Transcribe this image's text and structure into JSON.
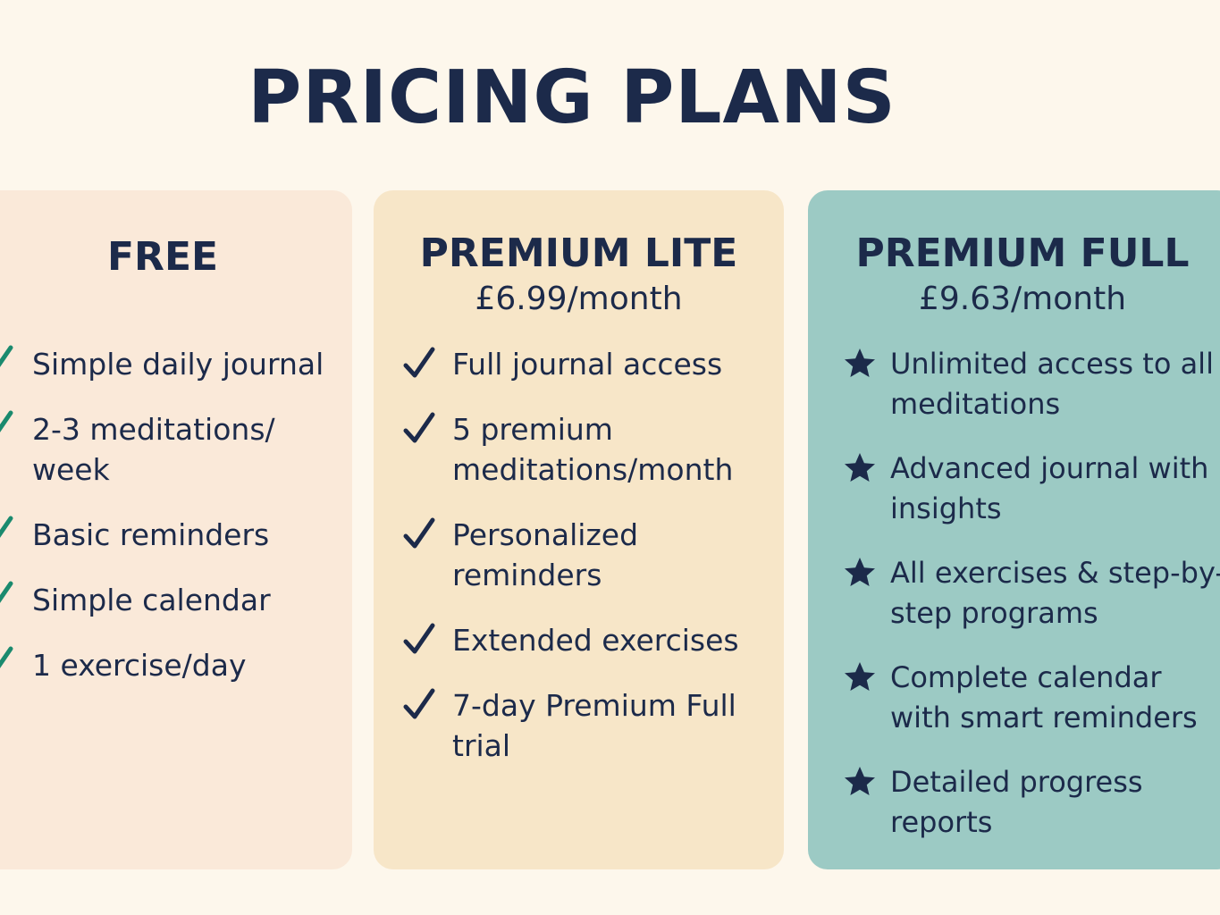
{
  "page": {
    "title": "PRICING PLANS"
  },
  "colors": {
    "background": "#fdf7ec",
    "text": "#1c2a4a",
    "free_card": "#fae9d9",
    "lite_card": "#f7e6c8",
    "full_card": "#9ccac4",
    "free_check": "#1a8a6e",
    "lite_check": "#1c2a4a",
    "full_star": "#1c2a4a"
  },
  "plans": [
    {
      "name": "FREE",
      "price": "",
      "icon": "check-icon",
      "features": [
        "Simple daily journal",
        "2-3 meditations/ week",
        "Basic reminders",
        "Simple calendar",
        "1 exercise/day"
      ]
    },
    {
      "name": "PREMIUM LITE",
      "price": "£6.99/month",
      "icon": "check-icon",
      "features": [
        "Full journal access",
        "5 premium meditations/month",
        "Personalized reminders",
        "Extended exercises",
        "7-day Premium Full trial"
      ]
    },
    {
      "name": "PREMIUM FULL",
      "price": "£9.63/month",
      "icon": "star-icon",
      "features": [
        "Unlimited access to all meditations",
        "Advanced journal with insights",
        "All exercises & step-by-step programs",
        "Complete calendar with smart reminders",
        "Detailed progress reports"
      ]
    }
  ]
}
